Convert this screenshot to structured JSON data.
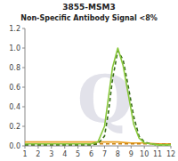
{
  "chart_data": {
    "type": "line",
    "title": "3855-MSM3",
    "subtitle": "Non-Specific Antibody Signal <8%",
    "annotations": [
      "Q"
    ],
    "xlim": [
      1,
      12
    ],
    "ylim": [
      0,
      1.2
    ],
    "xticks": [
      1,
      2,
      3,
      4,
      5,
      6,
      7,
      8,
      9,
      10,
      11,
      12
    ],
    "yticks": [
      {
        "value": 0,
        "label": "0.0"
      },
      0.2,
      0.4,
      0.6,
      0.8,
      {
        "value": 1,
        "label": "1.0"
      },
      1.2
    ],
    "grid": false,
    "series": [
      {
        "color": "#e8a020",
        "line_style": "solid",
        "x": [
          1,
          2,
          3,
          4,
          5,
          6,
          7,
          8,
          9,
          10,
          11,
          12
        ],
        "values": [
          0.04,
          0.04,
          0.04,
          0.04,
          0.04,
          0.04,
          0.04,
          0.04,
          0.03,
          0.03,
          0.02,
          0.02
        ]
      },
      {
        "color": "#c88010",
        "line_style": "dashed",
        "x": [
          1,
          2,
          3,
          4,
          5,
          6,
          7,
          8,
          9,
          10,
          11,
          12
        ],
        "values": [
          0.02,
          0.02,
          0.02,
          0.02,
          0.02,
          0.02,
          0.02,
          0.02,
          0.02,
          0.02,
          0.02,
          0.02
        ]
      },
      {
        "color": "#3a6e1a",
        "line_style": "dashed",
        "x": [
          1,
          2,
          3,
          4,
          5,
          6,
          6.5,
          7.0,
          7.3,
          7.6,
          8.0,
          8.4,
          8.8,
          9.2,
          9.6,
          10.0,
          10.5,
          11.0,
          11.5,
          12
        ],
        "values": [
          0.01,
          0.01,
          0.01,
          0.01,
          0.01,
          0.01,
          0.02,
          0.1,
          0.35,
          0.68,
          0.97,
          0.88,
          0.6,
          0.3,
          0.1,
          0.04,
          0.02,
          0.01,
          0.01,
          0.01
        ]
      },
      {
        "color": "#88c83a",
        "line_style": "solid",
        "x": [
          1,
          2,
          3,
          4,
          5,
          6,
          6.5,
          7.0,
          7.3,
          7.6,
          8.0,
          8.4,
          8.8,
          9.2,
          9.6,
          10.0,
          10.5,
          11.0,
          11.5,
          12
        ],
        "values": [
          0.02,
          0.02,
          0.02,
          0.02,
          0.02,
          0.02,
          0.04,
          0.2,
          0.5,
          0.8,
          1.0,
          0.82,
          0.52,
          0.22,
          0.08,
          0.03,
          0.02,
          0.01,
          0.01,
          0.01
        ]
      }
    ]
  }
}
